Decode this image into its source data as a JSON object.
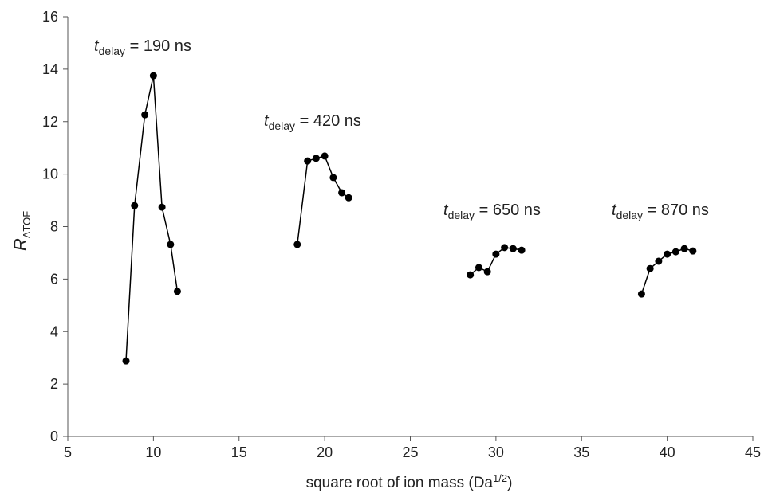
{
  "chart_data": {
    "type": "line",
    "x_label": {
      "text": "square root of ion mass  (Da",
      "sup": "1/2",
      "after": ")"
    },
    "y_label": {
      "text": "R",
      "sub": "ΔTOF"
    },
    "xlim": [
      5,
      45
    ],
    "xticks": [
      5,
      10,
      15,
      20,
      25,
      30,
      35,
      40,
      45
    ],
    "ylim": [
      0,
      16
    ],
    "yticks": [
      0,
      2,
      4,
      6,
      8,
      10,
      12,
      14,
      16
    ],
    "grid": false,
    "color": "#000000",
    "series": [
      {
        "x": [
          8.4,
          8.9,
          9.5,
          10.0,
          10.5,
          11.0,
          11.4
        ],
        "values": [
          2.88,
          8.8,
          12.26,
          13.75,
          8.74,
          7.32,
          5.53
        ]
      },
      {
        "x": [
          18.4,
          19.0,
          19.5,
          20.0,
          20.5,
          21.0,
          21.4
        ],
        "values": [
          7.32,
          10.5,
          10.6,
          10.69,
          9.87,
          9.29,
          9.1
        ]
      },
      {
        "x": [
          28.5,
          29.0,
          29.5,
          30.0,
          30.5,
          31.0,
          31.5
        ],
        "values": [
          6.16,
          6.44,
          6.28,
          6.95,
          7.2,
          7.16,
          7.1
        ]
      },
      {
        "x": [
          38.5,
          39.0,
          39.5,
          40.0,
          40.5,
          41.0,
          41.5
        ],
        "values": [
          5.43,
          6.4,
          6.68,
          6.95,
          7.04,
          7.16,
          7.07
        ]
      }
    ],
    "annotations": [
      {
        "t": "t",
        "sub": "delay",
        "rest": " = 190 ns"
      },
      {
        "t": "t",
        "sub": "delay",
        "rest": " = 420 ns"
      },
      {
        "t": "t",
        "sub": "delay",
        "rest": " = 650 ns"
      },
      {
        "t": "t",
        "sub": "delay",
        "rest": " = 870 ns"
      }
    ]
  }
}
